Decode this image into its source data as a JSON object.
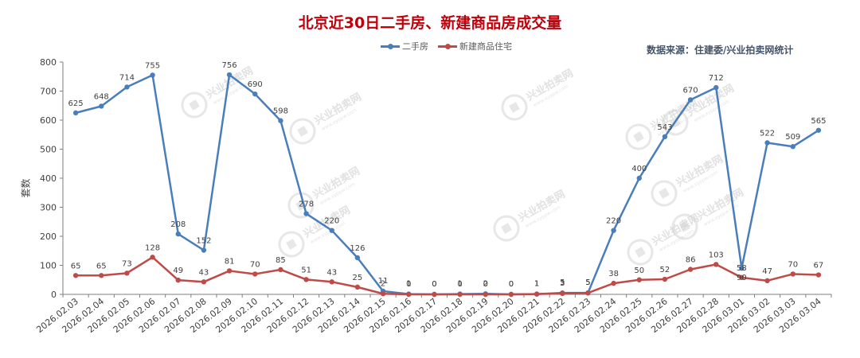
{
  "title": "北京近30日二手房、新建商品房成交量",
  "source_note": "数据来源：住建委/兴业拍卖网统计",
  "watermark": {
    "text": "兴业拍卖网",
    "sub": "www.xyppw.com"
  },
  "colors": {
    "series_0": "#4a7ebb",
    "series_1": "#be4b48",
    "axis": "#7f7f7f",
    "watermark": "#d4d4d4"
  },
  "chart_data": {
    "type": "line",
    "title": "北京近30日二手房、新建商品房成交量",
    "xlabel": "",
    "ylabel": "套数",
    "ylim": [
      0,
      800
    ],
    "yticks": [
      0,
      100,
      200,
      300,
      400,
      500,
      600,
      700,
      800
    ],
    "grid": false,
    "legend_position": "top-center",
    "x": [
      "2026.02.03",
      "2026.02.04",
      "2026.02.05",
      "2026.02.06",
      "2026.02.07",
      "2026.02.08",
      "2026.02.09",
      "2026.02.10",
      "2026.02.11",
      "2026.02.12",
      "2026.02.13",
      "2026.02.14",
      "2026.02.15",
      "2026.02.16",
      "2026.02.17",
      "2026.02.18",
      "2026.02.19",
      "2026.02.20",
      "2026.02.21",
      "2026.02.22",
      "2026.02.23",
      "2026.02.24",
      "2026.02.25",
      "2026.02.26",
      "2026.02.27",
      "2026.02.28",
      "2026.03.01",
      "2026.03.02",
      "2026.03.03",
      "2026.03.04"
    ],
    "series": [
      {
        "name": "二手房",
        "values": [
          625,
          648,
          714,
          755,
          208,
          152,
          756,
          690,
          598,
          278,
          220,
          126,
          11,
          1,
          0,
          1,
          2,
          0,
          1,
          5,
          5,
          220,
          400,
          543,
          670,
          712,
          90,
          522,
          509,
          565
        ]
      },
      {
        "name": "新建商品住宅",
        "values": [
          65,
          65,
          73,
          128,
          49,
          43,
          81,
          70,
          85,
          51,
          43,
          25,
          2,
          0,
          0,
          0,
          0,
          0,
          1,
          3,
          5,
          38,
          50,
          52,
          86,
          103,
          58,
          47,
          70,
          67
        ]
      }
    ]
  }
}
